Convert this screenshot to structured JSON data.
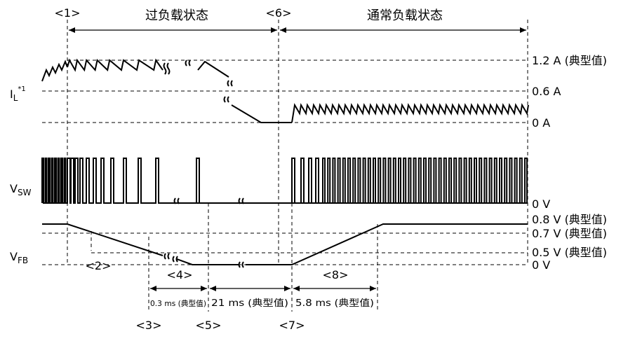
{
  "diagram": {
    "markers": {
      "m1": "<1>",
      "m2": "<2>",
      "m3": "<3>",
      "m4": "<4>",
      "m5": "<5>",
      "m6": "<6>",
      "m7": "<7>",
      "m8": "<8>"
    },
    "states": {
      "overload": "过负载状态",
      "normal": "通常负载状态"
    },
    "signals": {
      "il_main": "I",
      "il_sub": "L",
      "il_sup": "*1",
      "vsw_main": "V",
      "vsw_sub": "SW",
      "vfb_main": "V",
      "vfb_sub": "FB"
    },
    "levels": {
      "il_1_2": "1.2 A (典型值)",
      "il_0_6": "0.6 A",
      "il_0": "0 A",
      "vsw_0": "0 V",
      "vfb_0_8": "0.8 V (典型值)",
      "vfb_0_7": "0.7 V (典型值)",
      "vfb_0_5": "0.5 V (典型值)",
      "vfb_0": "0 V"
    },
    "timings": {
      "t3": "0.3 ms (典型值)",
      "t5": "21 ms (典型值)",
      "t7": "5.8 ms (典型值)"
    }
  }
}
